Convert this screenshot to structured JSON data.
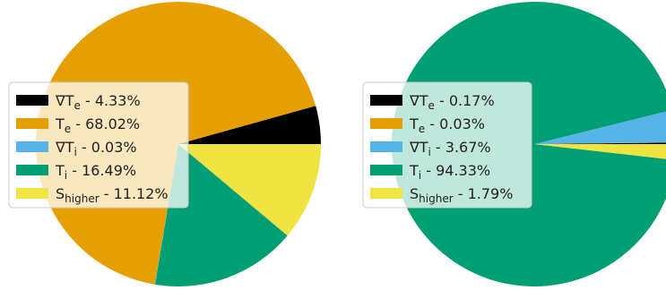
{
  "chart_data": [
    {
      "type": "pie",
      "title": "",
      "categories": [
        "∇T_e",
        "T_e",
        "∇T_i",
        "T_i",
        "S_higher"
      ],
      "values": [
        4.33,
        68.02,
        0.03,
        16.49,
        11.12
      ],
      "legend_labels": [
        "4.33%",
        "68.02%",
        "0.03%",
        "16.49%",
        "11.12%"
      ],
      "legend_placement": "center-left"
    },
    {
      "type": "pie",
      "title": "",
      "categories": [
        "∇T_e",
        "T_e",
        "∇T_i",
        "T_i",
        "S_higher"
      ],
      "values": [
        0.17,
        0.03,
        3.67,
        94.33,
        1.79
      ],
      "legend_labels": [
        "0.17%",
        "0.03%",
        "3.67%",
        "94.33%",
        "1.79%"
      ],
      "legend_placement": "center-left"
    }
  ],
  "series_style": [
    {
      "base": "∇T",
      "sub": "e",
      "color": "#000000"
    },
    {
      "base": "T",
      "sub": "e",
      "color": "#E69F00"
    },
    {
      "base": "∇T",
      "sub": "i",
      "color": "#56B4E9"
    },
    {
      "base": "T",
      "sub": "i",
      "color": "#009E73"
    },
    {
      "base": "S",
      "sub": "higher",
      "color": "#F0E442"
    }
  ],
  "legend_separator": " - "
}
